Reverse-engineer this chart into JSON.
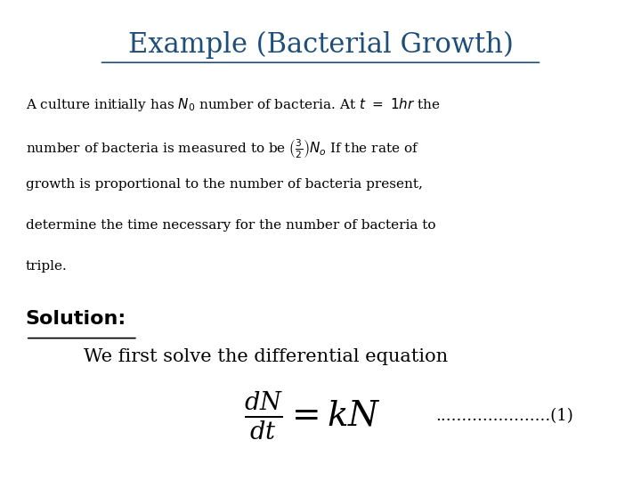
{
  "title": "Example (Bacterial Growth)",
  "title_color": "#1F4E79",
  "title_fontsize": 22,
  "title_underline": true,
  "background_color": "#ffffff",
  "problem_text_lines": [
    "A culture initially has $N_0$ number of bacteria. At $t\\ =\\ 1hr$ the",
    "number of bacteria is measured to be $\\left(\\frac{3}{2}\\right)N_o$ If the rate of",
    "growth is proportional to the number of bacteria present,",
    "determine the time necessary for the number of bacteria to",
    "triple."
  ],
  "solution_label": "Solution:",
  "solution_fontsize": 16,
  "we_first_text": "We first solve the differential equation",
  "we_first_fontsize": 15,
  "equation": "\\frac{dN}{dt} = kN",
  "equation_dots": "......................(1)",
  "equation_fontsize": 22
}
